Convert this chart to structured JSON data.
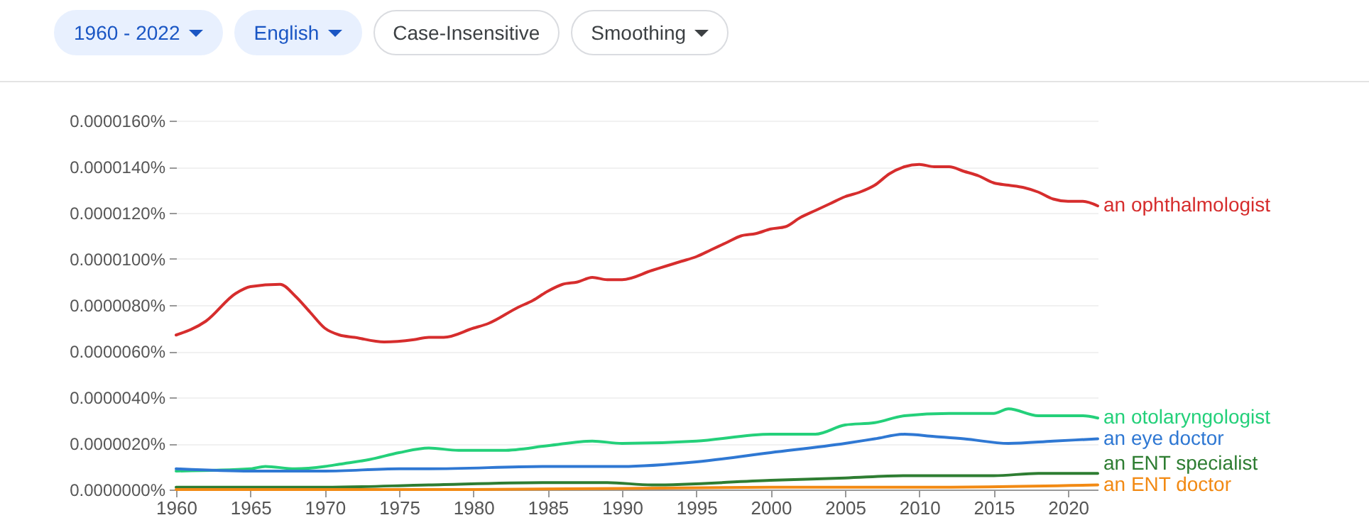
{
  "chart_data": {
    "type": "line",
    "annotations": [
      "1960 - 2022",
      "English",
      "Case-Insensitive",
      "Smoothing"
    ],
    "xlim": [
      1960,
      2022
    ],
    "xticks": [
      1960,
      1965,
      1970,
      1975,
      1980,
      1985,
      1990,
      1995,
      2000,
      2005,
      2010,
      2015,
      2020
    ],
    "ylim": [
      0,
      1.6e-05
    ],
    "yticks": [
      {
        "value": 0,
        "label": "0.0000000%"
      },
      {
        "value": 2e-06,
        "label": "0.0000020%"
      },
      {
        "value": 4e-06,
        "label": "0.0000040%"
      },
      {
        "value": 6e-06,
        "label": "0.0000060%"
      },
      {
        "value": 8e-06,
        "label": "0.0000080%"
      },
      {
        "value": 1e-05,
        "label": "0.0000100%"
      },
      {
        "value": 1.2e-05,
        "label": "0.0000120%"
      },
      {
        "value": 1.4e-05,
        "label": "0.0000140%"
      },
      {
        "value": 1.6e-05,
        "label": "0.0000160%"
      }
    ],
    "grid": "y",
    "legend": false,
    "line_style": "solid",
    "marker": "none",
    "series": [
      {
        "name": "an ophthalmologist",
        "color": "#d62d2d",
        "x": [
          1960,
          1962,
          1964,
          1965,
          1967,
          1968,
          1969,
          1970,
          1971,
          1972,
          1974,
          1976,
          1977,
          1978,
          1980,
          1981,
          1983,
          1984,
          1985,
          1986,
          1987,
          1988,
          1989,
          1990,
          1992,
          1993,
          1994,
          1995,
          1996,
          1997,
          1998,
          1999,
          2000,
          2001,
          2002,
          2003,
          2004,
          2005,
          2006,
          2007,
          2008,
          2009,
          2010,
          2011,
          2012,
          2013,
          2014,
          2015,
          2016,
          2017,
          2018,
          2019,
          2020,
          2021,
          2022
        ],
        "values": [
          6.7e-06,
          7.3e-06,
          8.5e-06,
          8.8e-06,
          8.9e-06,
          8.4e-06,
          7.7e-06,
          7e-06,
          6.7e-06,
          6.6e-06,
          6.4e-06,
          6.5e-06,
          6.6e-06,
          6.6e-06,
          7e-06,
          7.2e-06,
          7.9e-06,
          8.2e-06,
          8.6e-06,
          8.9e-06,
          9e-06,
          9.2e-06,
          9.1e-06,
          9.1e-06,
          9.5e-06,
          9.7e-06,
          9.9e-06,
          1.01e-05,
          1.04e-05,
          1.07e-05,
          1.1e-05,
          1.11e-05,
          1.13e-05,
          1.14e-05,
          1.18e-05,
          1.21e-05,
          1.24e-05,
          1.27e-05,
          1.29e-05,
          1.32e-05,
          1.37e-05,
          1.4e-05,
          1.41e-05,
          1.4e-05,
          1.4e-05,
          1.38e-05,
          1.36e-05,
          1.33e-05,
          1.32e-05,
          1.31e-05,
          1.29e-05,
          1.26e-05,
          1.25e-05,
          1.25e-05,
          1.23e-05
        ]
      },
      {
        "name": "an otolaryngologist",
        "color": "#24d07a",
        "x": [
          1960,
          1965,
          1966,
          1968,
          1970,
          1971,
          1973,
          1975,
          1977,
          1979,
          1982,
          1985,
          1988,
          1990,
          1995,
          2000,
          2003,
          2005,
          2007,
          2009,
          2012,
          2015,
          2016,
          2018,
          2021,
          2022
        ],
        "values": [
          8e-07,
          9e-07,
          1e-06,
          9e-07,
          1e-06,
          1.1e-06,
          1.3e-06,
          1.6e-06,
          1.8e-06,
          1.7e-06,
          1.7e-06,
          1.9e-06,
          2.1e-06,
          2e-06,
          2.1e-06,
          2.4e-06,
          2.4e-06,
          2.8e-06,
          2.9e-06,
          3.2e-06,
          3.3e-06,
          3.3e-06,
          3.5e-06,
          3.2e-06,
          3.2e-06,
          3.1e-06
        ]
      },
      {
        "name": "an eye doctor",
        "color": "#2f78d3",
        "x": [
          1960,
          1965,
          1970,
          1975,
          1977,
          1985,
          1988,
          1990,
          1995,
          2000,
          2005,
          2007,
          2009,
          2011,
          2013,
          2016,
          2019,
          2022
        ],
        "values": [
          9e-07,
          8e-07,
          8e-07,
          9e-07,
          9e-07,
          1e-06,
          1e-06,
          1e-06,
          1.2e-06,
          1.6e-06,
          2e-06,
          2.2e-06,
          2.4e-06,
          2.3e-06,
          2.2e-06,
          2e-06,
          2.1e-06,
          2.2e-06
        ]
      },
      {
        "name": "an ENT specialist",
        "color": "#2e7d32",
        "x": [
          1960,
          1970,
          1977,
          1985,
          1989,
          1992,
          2000,
          2005,
          2009,
          2015,
          2018,
          2022
        ],
        "values": [
          1e-07,
          1e-07,
          2e-07,
          3e-07,
          3e-07,
          2e-07,
          4e-07,
          5e-07,
          6e-07,
          6e-07,
          7e-07,
          7e-07
        ]
      },
      {
        "name": "an ENT doctor",
        "color": "#f28a14",
        "x": [
          1960,
          1980,
          2000,
          2010,
          2022
        ],
        "values": [
          0,
          0,
          1e-07,
          1e-07,
          2e-07
        ]
      }
    ]
  }
}
